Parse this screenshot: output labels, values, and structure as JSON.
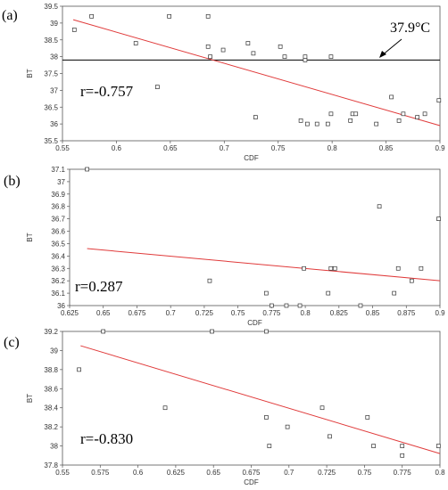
{
  "chart_data": [
    {
      "type": "scatter",
      "panel_label": "(a)",
      "xlabel": "CDF",
      "ylabel": "BT",
      "xlim": [
        0.55,
        0.9
      ],
      "ylim": [
        35.5,
        39.5
      ],
      "x_ticks": [
        0.55,
        0.6,
        0.65,
        0.7,
        0.75,
        0.8,
        0.85,
        0.9
      ],
      "y_ticks": [
        35.5,
        36,
        36.5,
        37,
        37.5,
        38,
        38.5,
        39,
        39.5
      ],
      "points": [
        [
          0.561,
          38.8
        ],
        [
          0.577,
          39.2
        ],
        [
          0.618,
          38.4
        ],
        [
          0.638,
          37.1
        ],
        [
          0.649,
          39.2
        ],
        [
          0.685,
          39.2
        ],
        [
          0.685,
          38.3
        ],
        [
          0.687,
          38.0
        ],
        [
          0.699,
          38.2
        ],
        [
          0.722,
          38.4
        ],
        [
          0.727,
          38.1
        ],
        [
          0.729,
          36.2
        ],
        [
          0.752,
          38.3
        ],
        [
          0.756,
          38.0
        ],
        [
          0.771,
          36.1
        ],
        [
          0.775,
          38.0
        ],
        [
          0.775,
          37.9
        ],
        [
          0.777,
          36.0
        ],
        [
          0.786,
          36.0
        ],
        [
          0.796,
          36.0
        ],
        [
          0.799,
          36.3
        ],
        [
          0.799,
          38.0
        ],
        [
          0.817,
          36.1
        ],
        [
          0.819,
          36.3
        ],
        [
          0.822,
          36.3
        ],
        [
          0.841,
          36.0
        ],
        [
          0.855,
          36.8
        ],
        [
          0.862,
          36.1
        ],
        [
          0.866,
          36.3
        ],
        [
          0.879,
          36.2
        ],
        [
          0.886,
          36.3
        ],
        [
          0.899,
          36.7
        ]
      ],
      "fit_line": [
        [
          0.56,
          39.1
        ],
        [
          0.9,
          35.95
        ]
      ],
      "threshold": 37.9,
      "threshold_label": "37.9°C",
      "r_label": "r=-0.757"
    },
    {
      "type": "scatter",
      "panel_label": "(b)",
      "xlabel": "CDF",
      "ylabel": "BT",
      "xlim": [
        0.625,
        0.9
      ],
      "ylim": [
        36.0,
        37.1
      ],
      "x_ticks": [
        0.625,
        0.65,
        0.675,
        0.7,
        0.725,
        0.75,
        0.775,
        0.8,
        0.825,
        0.85,
        0.875,
        0.9
      ],
      "x_tick_labels": [
        "0.625",
        "0.65",
        "0.675",
        "0.7",
        "0.725",
        "0.75",
        "0.775",
        "0.8",
        "0.825",
        "0.85",
        "0.875",
        "0.9"
      ],
      "y_ticks": [
        36.0,
        36.1,
        36.2,
        36.3,
        36.4,
        36.5,
        36.6,
        36.7,
        36.8,
        36.9,
        37.0,
        37.1
      ],
      "y_tick_labels": [
        "36",
        "36.1",
        "36.2",
        "36.3",
        "36.4",
        "36.5",
        "36.6",
        "36.7",
        "36.8",
        "36.9",
        "37",
        "37.1"
      ],
      "points": [
        [
          0.638,
          37.1
        ],
        [
          0.729,
          36.2
        ],
        [
          0.771,
          36.1
        ],
        [
          0.775,
          36.0
        ],
        [
          0.786,
          36.0
        ],
        [
          0.796,
          36.0
        ],
        [
          0.799,
          36.3
        ],
        [
          0.817,
          36.1
        ],
        [
          0.819,
          36.3
        ],
        [
          0.822,
          36.3
        ],
        [
          0.841,
          36.0
        ],
        [
          0.855,
          36.8
        ],
        [
          0.866,
          36.1
        ],
        [
          0.869,
          36.3
        ],
        [
          0.879,
          36.2
        ],
        [
          0.886,
          36.3
        ],
        [
          0.899,
          36.7
        ]
      ],
      "fit_line": [
        [
          0.638,
          36.46
        ],
        [
          0.9,
          36.2
        ]
      ],
      "r_label": "r=0.287"
    },
    {
      "type": "scatter",
      "panel_label": "(c)",
      "xlabel": "CDF",
      "ylabel": "BT",
      "xlim": [
        0.55,
        0.8
      ],
      "ylim": [
        37.8,
        39.2
      ],
      "x_ticks": [
        0.55,
        0.575,
        0.6,
        0.625,
        0.65,
        0.675,
        0.7,
        0.725,
        0.75,
        0.775,
        0.8
      ],
      "x_tick_labels": [
        "0.55",
        "0.575",
        "0.6",
        "0.625",
        "0.65",
        "0.675",
        "0.7",
        "0.725",
        "0.75",
        "0.775",
        "0.8"
      ],
      "y_ticks": [
        37.8,
        38.0,
        38.2,
        38.4,
        38.6,
        38.8,
        39.0,
        39.2
      ],
      "y_tick_labels": [
        "37.8",
        "38",
        "38.2",
        "38.4",
        "38.6",
        "38.8",
        "39",
        "39.2"
      ],
      "points": [
        [
          0.561,
          38.8
        ],
        [
          0.577,
          39.2
        ],
        [
          0.618,
          38.4
        ],
        [
          0.649,
          39.2
        ],
        [
          0.685,
          39.2
        ],
        [
          0.685,
          38.3
        ],
        [
          0.687,
          38.0
        ],
        [
          0.699,
          38.2
        ],
        [
          0.722,
          38.4
        ],
        [
          0.727,
          38.1
        ],
        [
          0.752,
          38.3
        ],
        [
          0.756,
          38.0
        ],
        [
          0.775,
          38.0
        ],
        [
          0.775,
          37.9
        ],
        [
          0.799,
          38.0
        ]
      ],
      "fit_line": [
        [
          0.562,
          39.05
        ],
        [
          0.8,
          37.92
        ]
      ],
      "r_label": "r=-0.830"
    }
  ],
  "style": {
    "fit_color": "#e03a3a",
    "point_color": "#333333",
    "axis_color": "#555555",
    "threshold_color": "#000000"
  }
}
